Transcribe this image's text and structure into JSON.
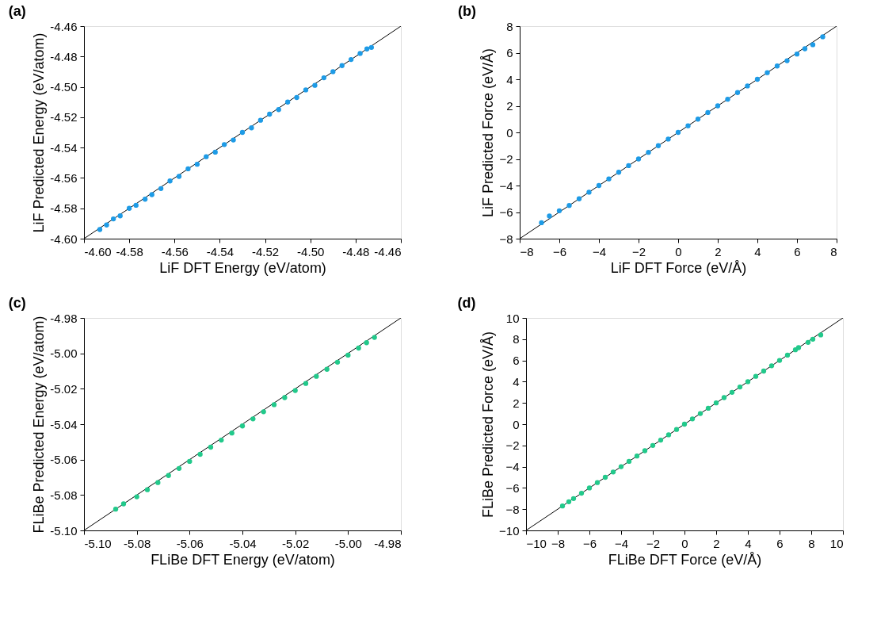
{
  "chart_data": [
    {
      "type": "scatter",
      "title": "(a)",
      "xlabel": "LiF DFT Energy (eV/atom)",
      "ylabel": "LiF Predicted Energy (eV/atom)",
      "grid": false,
      "legend": false,
      "xlim": [
        -4.6,
        -4.46
      ],
      "ylim": [
        -4.6,
        -4.46
      ],
      "xticks": [
        {
          "value": -4.6,
          "label": "-4.60"
        },
        {
          "value": -4.58,
          "label": "-4.58"
        },
        {
          "value": -4.56,
          "label": "-4.56"
        },
        {
          "value": -4.54,
          "label": "-4.54"
        },
        {
          "value": -4.52,
          "label": "-4.52"
        },
        {
          "value": -4.5,
          "label": "-4.50"
        },
        {
          "value": -4.48,
          "label": "-4.48"
        },
        {
          "value": -4.46,
          "label": "-4.46"
        }
      ],
      "yticks": [
        {
          "value": -4.6,
          "label": "-4.60"
        },
        {
          "value": -4.58,
          "label": "-4.58"
        },
        {
          "value": -4.56,
          "label": "-4.56"
        },
        {
          "value": -4.54,
          "label": "-4.54"
        },
        {
          "value": -4.52,
          "label": "-4.52"
        },
        {
          "value": -4.5,
          "label": "-4.50"
        },
        {
          "value": -4.48,
          "label": "-4.48"
        },
        {
          "value": -4.46,
          "label": "-4.46"
        }
      ],
      "series": [
        {
          "type": "scatter",
          "marker": "circle",
          "color": "#1e9be6",
          "x": [
            -4.593,
            -4.59,
            -4.587,
            -4.584,
            -4.58,
            -4.577,
            -4.573,
            -4.57,
            -4.566,
            -4.562,
            -4.558,
            -4.554,
            -4.55,
            -4.546,
            -4.542,
            -4.538,
            -4.534,
            -4.53,
            -4.526,
            -4.522,
            -4.518,
            -4.514,
            -4.51,
            -4.506,
            -4.502,
            -4.498,
            -4.494,
            -4.49,
            -4.486,
            -4.482,
            -4.478,
            -4.475,
            -4.473
          ],
          "values": [
            -4.594,
            -4.591,
            -4.587,
            -4.585,
            -4.58,
            -4.578,
            -4.574,
            -4.571,
            -4.567,
            -4.562,
            -4.559,
            -4.554,
            -4.551,
            -4.546,
            -4.543,
            -4.538,
            -4.535,
            -4.53,
            -4.527,
            -4.522,
            -4.518,
            -4.515,
            -4.51,
            -4.507,
            -4.502,
            -4.499,
            -4.494,
            -4.49,
            -4.486,
            -4.482,
            -4.478,
            -4.475,
            -4.474
          ]
        },
        {
          "type": "line",
          "color": "#000000",
          "x": [
            -4.6,
            -4.46
          ],
          "values": [
            -4.6,
            -4.46
          ]
        }
      ]
    },
    {
      "type": "scatter",
      "title": "(b)",
      "xlabel": "LiF DFT Force (eV/Å)",
      "ylabel": "LiF Predicted Force (eV/Å)",
      "grid": false,
      "legend": false,
      "xlim": [
        -8,
        8
      ],
      "ylim": [
        -8,
        8
      ],
      "xticks": [
        -8,
        -6,
        -4,
        -2,
        0,
        2,
        4,
        6,
        8
      ],
      "yticks": [
        -8,
        -6,
        -4,
        -2,
        0,
        2,
        4,
        6,
        8
      ],
      "series": [
        {
          "type": "scatter",
          "marker": "circle",
          "color": "#1e9be6",
          "x": [
            -6.9,
            -6.5,
            -6.0,
            -5.5,
            -5.0,
            -4.5,
            -4.0,
            -3.5,
            -3.0,
            -2.5,
            -2.0,
            -1.5,
            -1.0,
            -0.5,
            0.0,
            0.5,
            1.0,
            1.5,
            2.0,
            2.5,
            3.0,
            3.5,
            4.0,
            4.5,
            5.0,
            5.5,
            6.0,
            6.4,
            6.8,
            7.3
          ],
          "values": [
            -6.8,
            -6.3,
            -5.9,
            -5.5,
            -5.0,
            -4.5,
            -4.0,
            -3.5,
            -3.0,
            -2.5,
            -2.0,
            -1.5,
            -1.0,
            -0.5,
            0.0,
            0.5,
            1.0,
            1.5,
            2.0,
            2.5,
            3.0,
            3.5,
            4.0,
            4.5,
            5.0,
            5.4,
            5.9,
            6.3,
            6.6,
            7.2
          ]
        },
        {
          "type": "line",
          "color": "#000000",
          "x": [
            -8,
            8
          ],
          "values": [
            -8,
            8
          ]
        }
      ]
    },
    {
      "type": "scatter",
      "title": "(c)",
      "xlabel": "FLiBe DFT Energy (eV/atom)",
      "ylabel": "FLiBe Predicted Energy (eV/atom)",
      "grid": false,
      "legend": false,
      "xlim": [
        -5.1,
        -4.98
      ],
      "ylim": [
        -5.1,
        -4.98
      ],
      "xticks": [
        {
          "value": -5.1,
          "label": "-5.10"
        },
        {
          "value": -5.08,
          "label": "-5.08"
        },
        {
          "value": -5.06,
          "label": "-5.06"
        },
        {
          "value": -5.04,
          "label": "-5.04"
        },
        {
          "value": -5.02,
          "label": "-5.02"
        },
        {
          "value": -5.0,
          "label": "-5.00"
        },
        {
          "value": -4.98,
          "label": "-4.98"
        }
      ],
      "yticks": [
        {
          "value": -5.1,
          "label": "-5.10"
        },
        {
          "value": -5.08,
          "label": "-5.08"
        },
        {
          "value": -5.06,
          "label": "-5.06"
        },
        {
          "value": -5.04,
          "label": "-5.04"
        },
        {
          "value": -5.02,
          "label": "-5.02"
        },
        {
          "value": -5.0,
          "label": "-5.00"
        },
        {
          "value": -4.98,
          "label": "-4.98"
        }
      ],
      "series": [
        {
          "type": "scatter",
          "marker": "circle",
          "color": "#22c98b",
          "x": [
            -5.088,
            -5.085,
            -5.08,
            -5.076,
            -5.072,
            -5.068,
            -5.064,
            -5.06,
            -5.056,
            -5.052,
            -5.048,
            -5.044,
            -5.04,
            -5.036,
            -5.032,
            -5.028,
            -5.024,
            -5.02,
            -5.016,
            -5.012,
            -5.008,
            -5.004,
            -5.0,
            -4.996,
            -4.993,
            -4.99
          ],
          "values": [
            -5.088,
            -5.085,
            -5.081,
            -5.077,
            -5.073,
            -5.069,
            -5.065,
            -5.061,
            -5.057,
            -5.053,
            -5.049,
            -5.045,
            -5.041,
            -5.037,
            -5.033,
            -5.029,
            -5.025,
            -5.021,
            -5.017,
            -5.013,
            -5.009,
            -5.005,
            -5.001,
            -4.997,
            -4.994,
            -4.991
          ]
        },
        {
          "type": "line",
          "color": "#000000",
          "x": [
            -5.1,
            -4.98
          ],
          "values": [
            -5.1,
            -4.98
          ]
        }
      ]
    },
    {
      "type": "scatter",
      "title": "(d)",
      "xlabel": "FLiBe DFT Force (eV/Å)",
      "ylabel": "FLiBe Predicted Force (eV/Å)",
      "grid": false,
      "legend": false,
      "xlim": [
        -10,
        10
      ],
      "ylim": [
        -10,
        10
      ],
      "xticks": [
        -10,
        -8,
        -6,
        -4,
        -2,
        0,
        2,
        4,
        6,
        8,
        10
      ],
      "yticks": [
        -10,
        -8,
        -6,
        -4,
        -2,
        0,
        2,
        4,
        6,
        8,
        10
      ],
      "series": [
        {
          "type": "scatter",
          "marker": "circle",
          "color": "#22c98b",
          "x": [
            -7.7,
            -7.3,
            -7.0,
            -6.5,
            -6.0,
            -5.5,
            -5.0,
            -4.5,
            -4.0,
            -3.5,
            -3.0,
            -2.5,
            -2.0,
            -1.5,
            -1.0,
            -0.5,
            0.0,
            0.5,
            1.0,
            1.5,
            2.0,
            2.5,
            3.0,
            3.5,
            4.0,
            4.5,
            5.0,
            5.5,
            6.0,
            6.5,
            7.0,
            7.2,
            7.8,
            8.1,
            8.6
          ],
          "values": [
            -7.7,
            -7.3,
            -7.0,
            -6.5,
            -6.0,
            -5.5,
            -5.0,
            -4.5,
            -4.0,
            -3.5,
            -3.0,
            -2.5,
            -2.0,
            -1.5,
            -1.0,
            -0.5,
            0.0,
            0.5,
            1.0,
            1.5,
            2.0,
            2.5,
            3.0,
            3.5,
            4.0,
            4.5,
            5.0,
            5.5,
            6.0,
            6.5,
            7.0,
            7.2,
            7.7,
            8.0,
            8.4
          ]
        },
        {
          "type": "line",
          "color": "#000000",
          "x": [
            -10,
            10
          ],
          "values": [
            -10,
            10
          ]
        }
      ]
    }
  ]
}
